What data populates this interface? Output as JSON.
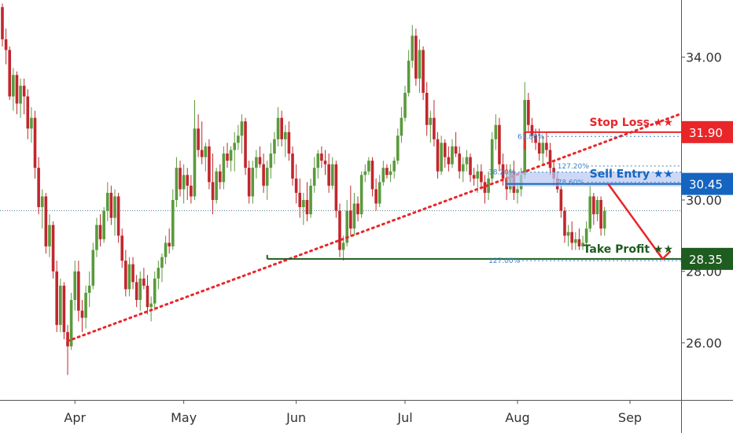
{
  "colors": {
    "up": "#5a9a3c",
    "down": "#c0272d",
    "stop": "#e8262a",
    "entry": "#1565c0",
    "entry_zone": "#b7c8f2",
    "profit": "#1f5c1f",
    "trend": "#e8262a",
    "fib": "#3b82c4",
    "grid": "#555555"
  },
  "chart_data": {
    "type": "candlestick",
    "x_ticks": [
      "Apr",
      "May",
      "Jun",
      "Jul",
      "Aug",
      "Sep"
    ],
    "y_ticks": [
      "26.00",
      "28.00",
      "30.00",
      "34.00"
    ],
    "ylim": [
      24.4,
      35.6
    ],
    "current_price": 29.7,
    "candles": [
      [
        "Mar 12",
        35.4,
        35.5,
        34.3,
        34.5
      ],
      [
        "Mar 13",
        34.5,
        34.8,
        33.8,
        34.2
      ],
      [
        "Mar 14",
        34.2,
        34.3,
        32.8,
        32.9
      ],
      [
        "Mar 15",
        32.9,
        33.7,
        32.5,
        33.5
      ],
      [
        "Mar 16",
        33.5,
        33.6,
        32.4,
        32.7
      ],
      [
        "Mar 17",
        32.7,
        33.4,
        32.3,
        33.2
      ],
      [
        "Mar 18",
        33.2,
        33.4,
        32.4,
        32.9
      ],
      [
        "Mar 19",
        32.9,
        33.1,
        31.7,
        32.0
      ],
      [
        "Mar 20",
        32.0,
        32.6,
        31.6,
        32.3
      ],
      [
        "Mar 21",
        32.3,
        32.5,
        30.6,
        30.9
      ],
      [
        "Mar 22",
        30.9,
        31.2,
        29.6,
        29.8
      ],
      [
        "Mar 23",
        29.8,
        30.3,
        29.2,
        30.1
      ],
      [
        "Mar 24",
        30.1,
        30.2,
        28.5,
        28.7
      ],
      [
        "Mar 25",
        28.7,
        29.6,
        28.4,
        29.3
      ],
      [
        "Mar 26",
        29.3,
        29.4,
        27.8,
        28.0
      ],
      [
        "Mar 27",
        28.0,
        28.3,
        26.3,
        26.5
      ],
      [
        "Mar 28",
        26.5,
        27.8,
        26.3,
        27.6
      ],
      [
        "Mar 29",
        27.6,
        27.7,
        26.1,
        26.3
      ],
      [
        "Mar 30",
        26.3,
        26.5,
        25.1,
        25.9
      ],
      [
        "Mar 31",
        25.9,
        27.4,
        25.8,
        27.2
      ],
      [
        "Apr 1",
        27.2,
        28.3,
        26.9,
        28.0
      ],
      [
        "Apr 2",
        28.0,
        28.3,
        26.6,
        26.9
      ],
      [
        "Apr 3",
        26.9,
        27.2,
        26.3,
        26.7
      ],
      [
        "Apr 4",
        26.7,
        27.6,
        26.4,
        27.4
      ],
      [
        "Apr 5",
        27.4,
        28.0,
        27.0,
        27.6
      ],
      [
        "Apr 6",
        27.6,
        28.8,
        27.5,
        28.6
      ],
      [
        "Apr 7",
        28.6,
        29.5,
        28.4,
        29.3
      ],
      [
        "Apr 8",
        29.3,
        29.6,
        28.7,
        28.9
      ],
      [
        "Apr 9",
        28.9,
        29.8,
        28.8,
        29.7
      ],
      [
        "Apr 10",
        29.7,
        30.5,
        29.4,
        30.2
      ],
      [
        "Apr 11",
        30.2,
        30.4,
        29.3,
        29.5
      ],
      [
        "Apr 12",
        29.5,
        30.3,
        29.0,
        30.1
      ],
      [
        "Apr 13",
        30.1,
        30.2,
        28.8,
        29.0
      ],
      [
        "Apr 14",
        29.0,
        29.2,
        28.1,
        28.3
      ],
      [
        "Apr 15",
        28.3,
        28.6,
        27.3,
        27.5
      ],
      [
        "Apr 16",
        27.5,
        28.4,
        27.3,
        28.2
      ],
      [
        "Apr 17",
        28.2,
        28.4,
        27.5,
        27.7
      ],
      [
        "Apr 18",
        27.7,
        27.9,
        27.0,
        27.2
      ],
      [
        "Apr 19",
        27.2,
        28.0,
        26.9,
        27.8
      ],
      [
        "Apr 20",
        27.8,
        28.1,
        27.5,
        27.6
      ],
      [
        "Apr 21",
        27.6,
        27.9,
        26.8,
        27.0
      ],
      [
        "Apr 22",
        27.0,
        27.3,
        26.6,
        27.1
      ],
      [
        "Apr 23",
        27.1,
        28.0,
        26.9,
        27.8
      ],
      [
        "Apr 24",
        27.8,
        28.3,
        27.5,
        28.1
      ],
      [
        "Apr 25",
        28.1,
        28.5,
        27.7,
        28.4
      ],
      [
        "Apr 26",
        28.4,
        29.0,
        28.2,
        28.8
      ],
      [
        "Apr 27",
        28.8,
        29.2,
        28.5,
        28.7
      ],
      [
        "Apr 28",
        28.7,
        30.3,
        28.6,
        30.0
      ],
      [
        "Apr 29",
        30.0,
        31.2,
        29.8,
        30.9
      ],
      [
        "Apr 30",
        30.9,
        31.1,
        30.1,
        30.3
      ],
      [
        "May 1",
        30.3,
        31.0,
        29.9,
        30.7
      ],
      [
        "May 2",
        30.7,
        30.9,
        30.0,
        30.4
      ],
      [
        "May 3",
        30.4,
        30.7,
        29.9,
        30.1
      ],
      [
        "May 4",
        30.1,
        32.8,
        30.0,
        32.0
      ],
      [
        "May 5",
        32.0,
        32.4,
        31.2,
        31.4
      ],
      [
        "May 6",
        31.4,
        32.2,
        31.0,
        31.2
      ],
      [
        "May 7",
        31.2,
        31.6,
        30.8,
        31.5
      ],
      [
        "May 8",
        31.5,
        31.7,
        30.3,
        30.5
      ],
      [
        "May 9",
        30.5,
        31.3,
        29.6,
        30.0
      ],
      [
        "May 10",
        30.0,
        30.9,
        29.9,
        30.8
      ],
      [
        "May 11",
        30.8,
        31.0,
        30.3,
        30.5
      ],
      [
        "May 12",
        30.5,
        31.5,
        30.3,
        31.3
      ],
      [
        "May 13",
        31.3,
        31.6,
        30.9,
        31.1
      ],
      [
        "May 14",
        31.1,
        31.5,
        30.8,
        31.4
      ],
      [
        "May 15",
        31.4,
        31.9,
        30.8,
        31.6
      ],
      [
        "May 16",
        31.6,
        32.1,
        31.4,
        31.8
      ],
      [
        "May 17",
        31.8,
        32.4,
        31.3,
        32.2
      ],
      [
        "May 18",
        32.2,
        32.3,
        30.7,
        30.9
      ],
      [
        "May 19",
        30.9,
        31.1,
        29.9,
        30.1
      ],
      [
        "May 20",
        30.1,
        31.1,
        29.9,
        30.9
      ],
      [
        "May 21",
        30.9,
        31.4,
        30.6,
        31.2
      ],
      [
        "May 22",
        31.2,
        31.5,
        30.9,
        31.0
      ],
      [
        "May 23",
        31.0,
        31.3,
        30.2,
        30.4
      ],
      [
        "May 24",
        30.4,
        31.1,
        30.0,
        30.9
      ],
      [
        "May 25",
        30.9,
        31.6,
        30.6,
        31.3
      ],
      [
        "May 26",
        31.3,
        31.9,
        31.0,
        31.7
      ],
      [
        "May 27",
        31.7,
        32.6,
        31.5,
        32.3
      ],
      [
        "May 28",
        32.3,
        32.5,
        31.5,
        31.7
      ],
      [
        "May 29",
        31.7,
        32.1,
        31.2,
        31.9
      ],
      [
        "May 30",
        31.9,
        32.2,
        31.1,
        31.3
      ],
      [
        "May 31",
        31.3,
        31.5,
        30.4,
        30.6
      ],
      [
        "Jun 1",
        30.6,
        31.0,
        29.9,
        30.2
      ],
      [
        "Jun 2",
        30.2,
        30.6,
        29.5,
        29.8
      ],
      [
        "Jun 3",
        29.8,
        30.2,
        29.3,
        30.0
      ],
      [
        "Jun 4",
        30.0,
        30.5,
        29.4,
        29.6
      ],
      [
        "Jun 5",
        29.6,
        30.6,
        29.5,
        30.4
      ],
      [
        "Jun 6",
        30.4,
        31.2,
        30.2,
        30.9
      ],
      [
        "Jun 7",
        30.9,
        31.4,
        30.6,
        31.3
      ],
      [
        "Jun 8",
        31.3,
        31.5,
        30.9,
        31.1
      ],
      [
        "Jun 9",
        31.1,
        31.4,
        30.7,
        31.0
      ],
      [
        "Jun 10",
        31.0,
        31.3,
        30.2,
        30.4
      ],
      [
        "Jun 11",
        30.4,
        31.2,
        30.3,
        31.0
      ],
      [
        "Jun 12",
        31.0,
        31.1,
        29.5,
        29.7
      ],
      [
        "Jun 13",
        29.7,
        29.9,
        28.4,
        28.6
      ],
      [
        "Jun 14",
        28.6,
        29.0,
        28.3,
        28.8
      ],
      [
        "Jun 15",
        28.8,
        30.0,
        28.7,
        29.7
      ],
      [
        "Jun 16",
        29.7,
        30.4,
        29.0,
        29.2
      ],
      [
        "Jun 17",
        29.2,
        30.2,
        29.0,
        29.9
      ],
      [
        "Jun 18",
        29.9,
        30.1,
        29.4,
        29.6
      ],
      [
        "Jun 19",
        29.6,
        30.8,
        29.5,
        30.7
      ],
      [
        "Jun 20",
        30.7,
        31.0,
        30.5,
        30.8
      ],
      [
        "Jun 21",
        30.8,
        31.2,
        30.7,
        31.1
      ],
      [
        "Jun 22",
        31.1,
        31.2,
        30.1,
        30.3
      ],
      [
        "Jun 23",
        30.3,
        30.6,
        29.7,
        29.9
      ],
      [
        "Jun 24",
        29.9,
        30.7,
        29.8,
        30.5
      ],
      [
        "Jun 25",
        30.5,
        31.1,
        30.4,
        30.9
      ],
      [
        "Jun 26",
        30.9,
        31.0,
        30.6,
        30.7
      ],
      [
        "Jun 27",
        30.7,
        31.0,
        30.5,
        30.8
      ],
      [
        "Jun 28",
        30.8,
        31.2,
        30.6,
        31.1
      ],
      [
        "Jun 29",
        31.1,
        32.0,
        31.0,
        31.8
      ],
      [
        "Jun 30",
        31.8,
        32.6,
        31.6,
        32.3
      ],
      [
        "Jul 1",
        32.3,
        33.2,
        32.2,
        33.0
      ],
      [
        "Jul 2",
        33.0,
        34.2,
        32.9,
        33.9
      ],
      [
        "Jul 3",
        33.9,
        34.9,
        33.7,
        34.6
      ],
      [
        "Jul 4",
        34.6,
        34.8,
        33.2,
        33.4
      ],
      [
        "Jul 5",
        33.4,
        34.5,
        33.0,
        34.2
      ],
      [
        "Jul 6",
        34.2,
        34.3,
        32.8,
        33.0
      ],
      [
        "Jul 7",
        33.0,
        33.3,
        31.8,
        32.1
      ],
      [
        "Jul 8",
        32.1,
        32.5,
        31.6,
        32.3
      ],
      [
        "Jul 9",
        32.3,
        32.8,
        31.5,
        31.7
      ],
      [
        "Jul 10",
        31.7,
        31.9,
        30.6,
        30.8
      ],
      [
        "Jul 11",
        30.8,
        31.8,
        30.7,
        31.6
      ],
      [
        "Jul 12",
        31.6,
        31.7,
        30.9,
        31.2
      ],
      [
        "Jul 13",
        31.2,
        31.5,
        30.8,
        31.0
      ],
      [
        "Jul 14",
        31.0,
        31.7,
        30.9,
        31.5
      ],
      [
        "Jul 15",
        31.5,
        31.9,
        31.2,
        31.3
      ],
      [
        "Jul 16",
        31.3,
        31.5,
        30.6,
        30.8
      ],
      [
        "Jul 17",
        30.8,
        31.2,
        30.5,
        31.0
      ],
      [
        "Jul 18",
        31.0,
        31.4,
        30.8,
        31.2
      ],
      [
        "Jul 19",
        31.2,
        31.3,
        30.5,
        30.7
      ],
      [
        "Jul 20",
        30.7,
        30.9,
        30.4,
        30.6
      ],
      [
        "Jul 21",
        30.6,
        31.0,
        30.2,
        30.8
      ],
      [
        "Jul 22",
        30.8,
        31.0,
        30.3,
        30.5
      ],
      [
        "Jul 23",
        30.5,
        30.7,
        29.9,
        30.2
      ],
      [
        "Jul 24",
        30.2,
        30.8,
        30.0,
        30.6
      ],
      [
        "Jul 25",
        30.6,
        31.9,
        30.5,
        31.7
      ],
      [
        "Jul 26",
        31.7,
        32.4,
        31.4,
        32.1
      ],
      [
        "Jul 27",
        32.1,
        32.3,
        30.8,
        31.0
      ],
      [
        "Jul 28",
        31.0,
        31.3,
        30.4,
        30.6
      ],
      [
        "Jul 29",
        30.6,
        31.0,
        30.0,
        30.3
      ],
      [
        "Jul 30",
        30.3,
        31.0,
        30.2,
        30.8
      ],
      [
        "Jul 31",
        30.8,
        31.1,
        30.0,
        30.2
      ],
      [
        "Aug 1",
        30.2,
        30.5,
        29.9,
        30.3
      ],
      [
        "Aug 2",
        30.3,
        30.9,
        30.1,
        30.7
      ],
      [
        "Aug 3",
        30.7,
        33.3,
        30.6,
        32.8
      ],
      [
        "Aug 4",
        32.8,
        33.0,
        31.9,
        32.1
      ],
      [
        "Aug 5",
        32.1,
        32.3,
        31.6,
        31.8
      ],
      [
        "Aug 6",
        31.8,
        32.0,
        31.4,
        31.6
      ],
      [
        "Aug 7",
        31.6,
        32.0,
        31.1,
        31.3
      ],
      [
        "Aug 8",
        31.3,
        31.8,
        31.0,
        31.6
      ],
      [
        "Aug 9",
        31.6,
        31.9,
        31.2,
        31.4
      ],
      [
        "Aug 10",
        31.4,
        31.6,
        30.7,
        30.9
      ],
      [
        "Aug 11",
        30.9,
        31.1,
        30.4,
        30.6
      ],
      [
        "Aug 12",
        30.6,
        30.8,
        30.2,
        30.3
      ],
      [
        "Aug 13",
        30.3,
        30.4,
        29.5,
        29.7
      ],
      [
        "Aug 14",
        29.7,
        29.8,
        28.8,
        29.0
      ],
      [
        "Aug 15",
        29.0,
        29.3,
        28.7,
        29.1
      ],
      [
        "Aug 16",
        29.1,
        29.4,
        28.6,
        28.8
      ],
      [
        "Aug 17",
        28.8,
        29.1,
        28.6,
        28.9
      ],
      [
        "Aug 18",
        28.9,
        29.2,
        28.6,
        28.7
      ],
      [
        "Aug 19",
        28.7,
        29.0,
        28.6,
        28.8
      ],
      [
        "Aug 20",
        28.8,
        29.4,
        28.7,
        29.2
      ],
      [
        "Aug 21",
        29.2,
        30.4,
        29.1,
        30.1
      ],
      [
        "Aug 22",
        30.1,
        30.2,
        29.3,
        29.6
      ],
      [
        "Aug 23",
        29.6,
        30.1,
        29.4,
        30.0
      ],
      [
        "Aug 24",
        30.0,
        30.1,
        29.0,
        29.2
      ],
      [
        "Aug 25",
        29.2,
        29.8,
        29.0,
        29.7
      ]
    ],
    "levels": [
      {
        "name": "Stop Loss",
        "stars": "★★",
        "price_label": "31.90",
        "value": 31.9
      },
      {
        "name": "Sell Entry",
        "stars": "★★",
        "price_label": "30.45",
        "value": 30.45
      },
      {
        "name": "Take Profit",
        "stars": "★★",
        "price_label": "28.35",
        "value": 28.35
      }
    ],
    "fib_labels": [
      "61.80%",
      "38.20%",
      "127.20%",
      "78.60%",
      "127.00%"
    ],
    "trendline": {
      "from": [
        "Mar 30",
        26.05
      ],
      "to": [
        "Sep 20",
        32.6
      ]
    },
    "arrow": {
      "from": [
        "Aug 26",
        30.45
      ],
      "to": [
        "Sep 10",
        28.35
      ]
    }
  }
}
